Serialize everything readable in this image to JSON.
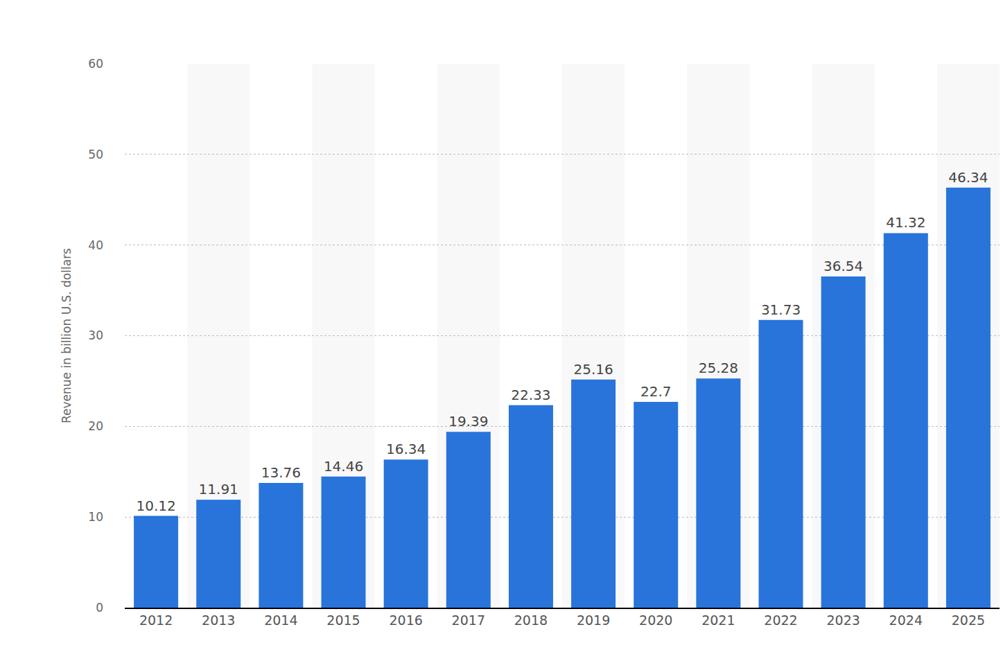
{
  "chart_data": {
    "type": "bar",
    "y_label": "Revenue in billion U.S. dollars",
    "categories": [
      "2012",
      "2013",
      "2014",
      "2015",
      "2016",
      "2017",
      "2018",
      "2019",
      "2020",
      "2021",
      "2022",
      "2023",
      "2024",
      "2025"
    ],
    "values": [
      10.12,
      11.91,
      13.76,
      14.46,
      16.34,
      19.39,
      22.33,
      25.16,
      22.7,
      25.28,
      31.73,
      36.54,
      41.32,
      46.34
    ],
    "color": "#2874db",
    "ylim": [
      0,
      60
    ],
    "yticks": [
      0,
      10,
      20,
      30,
      40,
      50,
      60
    ],
    "grid": true,
    "data_labels": true
  }
}
